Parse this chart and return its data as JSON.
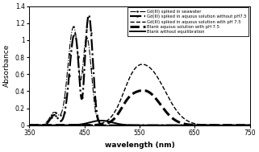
{
  "xlabel": "wavelength (nm)",
  "ylabel": "Absorbance",
  "xlim": [
    350,
    750
  ],
  "ylim": [
    0,
    1.4
  ],
  "yticks": [
    0,
    0.2,
    0.4,
    0.6,
    0.8,
    1.0,
    1.2,
    1.4
  ],
  "xticks": [
    350,
    450,
    550,
    650,
    750
  ],
  "legend": [
    "Gd(III) spiked in seawater",
    "Gd(III) spiked in aquous solution without pH7.5",
    "Gd(III) spiked in aquous solution with pH 7.5",
    "Blank aquous solution with pH 7.5",
    "Blank without equilibration"
  ],
  "line_styles": [
    {
      "ls": "-.",
      "lw": 0.8,
      "marker": ".",
      "ms": 1.5,
      "color": "black",
      "dashes": []
    },
    {
      "ls": "-.",
      "lw": 1.6,
      "marker": ".",
      "ms": 1.5,
      "color": "black",
      "dashes": []
    },
    {
      "ls": "--",
      "lw": 1.0,
      "marker": "",
      "ms": 0,
      "color": "black",
      "dashes": []
    },
    {
      "ls": "--",
      "lw": 2.2,
      "marker": "",
      "ms": 0,
      "color": "black",
      "dashes": []
    },
    {
      "ls": "-",
      "lw": 1.4,
      "marker": "",
      "ms": 0,
      "color": "black",
      "dashes": []
    }
  ],
  "background_color": "#ffffff",
  "figsize": [
    3.21,
    1.89
  ],
  "dpi": 100
}
